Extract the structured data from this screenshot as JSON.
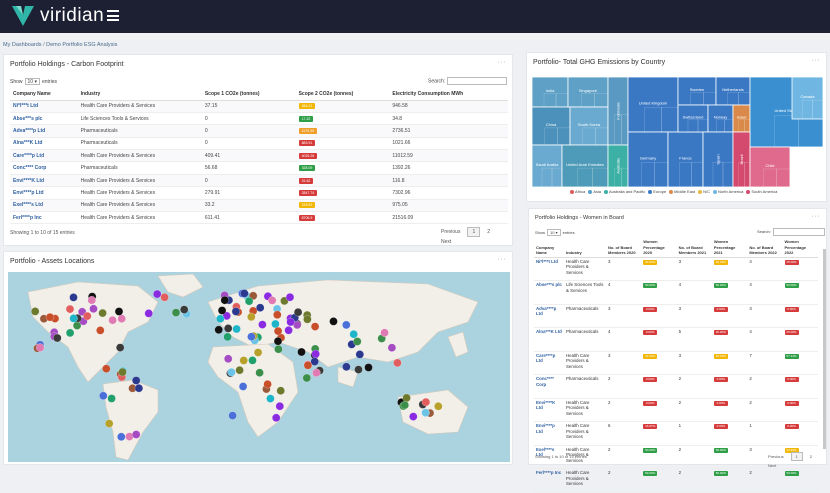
{
  "app": {
    "brand": "viridian"
  },
  "breadcrumb": {
    "root": "My Dashboards",
    "sep": "/",
    "current": "Demo Portfolio ESG Analysis"
  },
  "carbon": {
    "title": "Portfolio Holdings - Carbon Footprint",
    "show_label": "Show",
    "entries_value": "10",
    "entries_label": "entries",
    "search_label": "Search:",
    "columns": [
      "Company Name",
      "Industry",
      "Scope 1 CO2e (tonnes)",
      "Scope 2 CO2e (tonnes)",
      "Electricity Consumption MWh"
    ],
    "rows": [
      {
        "company": "Ni*l***t Ltd",
        "industry": "Health Care Providers & Services",
        "scope1": "37.15",
        "scope2": "264.21",
        "scope2_color": "#f2b705",
        "elec": "946.58"
      },
      {
        "company": "Abse***s plc",
        "industry": "Life Sciences Tools & Services",
        "scope1": "0",
        "scope2": "17.22",
        "scope2_color": "#2e9e47",
        "elec": "34.8"
      },
      {
        "company": "Adva****p Ltd",
        "industry": "Pharmaceuticals",
        "scope1": "0",
        "scope2": "1179.39",
        "scope2_color": "#f0a02a",
        "elec": "2736.51"
      },
      {
        "company": "Alna***K Ltd",
        "industry": "Pharmaceuticals",
        "scope1": "0",
        "scope2": "883.91",
        "scope2_color": "#d63b3b",
        "elec": "1021.66"
      },
      {
        "company": "Care****p Ltd",
        "industry": "Health Care Providers & Services",
        "scope1": "409.41",
        "scope2": "4025.25",
        "scope2_color": "#d63b3b",
        "elec": "11012.59"
      },
      {
        "company": "Conc**** Corp",
        "industry": "Pharmaceuticals",
        "scope1": "56.68",
        "scope2": "328.09",
        "scope2_color": "#2e9e47",
        "elec": "1392.26"
      },
      {
        "company": "Envi****K Ltd",
        "industry": "Health Care Providers & Services",
        "scope1": "0",
        "scope2": "31.62",
        "scope2_color": "#d63b3b",
        "elec": "116.8"
      },
      {
        "company": "Envi****p Ltd",
        "industry": "Health Care Providers & Services",
        "scope1": "279.91",
        "scope2": "2847.74",
        "scope2_color": "#d63b3b",
        "elec": "7302.96"
      },
      {
        "company": "Exel****s Ltd",
        "industry": "Health Care Providers & Services",
        "scope1": "33.2",
        "scope2": "378.62",
        "scope2_color": "#f2b705",
        "elec": "975.05"
      },
      {
        "company": "Ferl****p Inc",
        "industry": "Health Care Providers & Services",
        "scope1": "611.41",
        "scope2": "8706.9",
        "scope2_color": "#d63b3b",
        "elec": "21516.09"
      }
    ],
    "info": "Showing 1 to 10 of 15 entries",
    "pager": {
      "prev": "Previous",
      "p1": "1",
      "p2": "2",
      "next": "Next"
    }
  },
  "ghg": {
    "title": "Portfolio- Total GHG Emissions by Country",
    "cells": [
      {
        "label": "India",
        "color": "#5fa0c6"
      },
      {
        "label": "Singapore",
        "color": "#5fa0c6"
      },
      {
        "label": "China",
        "color": "#4c91bc"
      },
      {
        "label": "South Korea",
        "color": "#6aaad0"
      },
      {
        "label": "Indonesia",
        "color": "#5a9ac2"
      },
      {
        "label": "Saudi Arabia",
        "color": "#6aaad0"
      },
      {
        "label": "United Arab Emirates",
        "color": "#4d9bb8"
      },
      {
        "label": "Australia",
        "color": "#3db0a6"
      },
      {
        "label": "United Kingdom",
        "color": "#3a78c4"
      },
      {
        "label": "Germany",
        "color": "#3a78c4"
      },
      {
        "label": "France",
        "color": "#3a78c4"
      },
      {
        "label": "Sweden",
        "color": "#3a78c4"
      },
      {
        "label": "Netherlands",
        "color": "#3a78c4"
      },
      {
        "label": "Switzerland",
        "color": "#3a78c4"
      },
      {
        "label": "Norway",
        "color": "#3a78c4"
      },
      {
        "label": "Spain",
        "color": "#3a78c4"
      },
      {
        "label": "Israel",
        "color": "#d98a4a"
      },
      {
        "label": "United States",
        "color": "#3a8fd0"
      },
      {
        "label": "Canada",
        "color": "#6fb7e2"
      },
      {
        "label": "Brazil",
        "color": "#d44a6e"
      },
      {
        "label": "Chile",
        "color": "#e06a8e"
      }
    ],
    "legend": [
      {
        "label": "Africa",
        "color": "#e05a5a"
      },
      {
        "label": "Asia",
        "color": "#5aa0c6"
      },
      {
        "label": "Australia and Pacific",
        "color": "#3db0a6"
      },
      {
        "label": "Europe",
        "color": "#3a78c4"
      },
      {
        "label": "Middle East",
        "color": "#d98a4a"
      },
      {
        "label": "N/C",
        "color": "#e6b94a"
      },
      {
        "label": "North America",
        "color": "#6fb7e2"
      },
      {
        "label": "South America",
        "color": "#d44a6e"
      }
    ]
  },
  "women": {
    "title": "Portfolio Holdings - Women in Board",
    "show_label": "Show",
    "entries_value": "10",
    "entries_label": "entries",
    "search_label": "Search:",
    "columns": [
      "Company Name",
      "Industry",
      "No. of Board Members 2020",
      "Women Percentage 2020",
      "No. of Board Members 2021",
      "Women Percentage 2021",
      "No. of Board Members 2022",
      "Women Percentage 2022"
    ],
    "rows": [
      {
        "company": "Ni*l***t Ltd",
        "industry": "Health Care Providers & Services",
        "b20": "3",
        "w20": "33.33%",
        "c20": "#f2b705",
        "b21": "3",
        "w21": "33.33%",
        "c21": "#f2b705",
        "b22": "4",
        "w22": "25.00%",
        "c22": "#d63b3b"
      },
      {
        "company": "Abse***s plc",
        "industry": "Life Sciences Tools & Services",
        "b20": "4",
        "w20": "50.00%",
        "c20": "#2e9e47",
        "b21": "4",
        "w21": "50.00%",
        "c21": "#2e9e47",
        "b22": "4",
        "w22": "50.00%",
        "c22": "#2e9e47"
      },
      {
        "company": "Adva****p Ltd",
        "industry": "Pharmaceuticals",
        "b20": "3",
        "w20": "0.00%",
        "c20": "#d63b3b",
        "b21": "3",
        "w21": "0.00%",
        "c21": "#d63b3b",
        "b22": "3",
        "w22": "0.00%",
        "c22": "#d63b3b"
      },
      {
        "company": "Alna***K Ltd",
        "industry": "Pharmaceuticals",
        "b20": "4",
        "w20": "0.00%",
        "c20": "#d63b3b",
        "b21": "5",
        "w21": "20.00%",
        "c21": "#d63b3b",
        "b22": "4",
        "w22": "25.00%",
        "c22": "#d63b3b"
      },
      {
        "company": "Care****p Ltd",
        "industry": "Health Care Providers & Services",
        "b20": "3",
        "w20": "33.33%",
        "c20": "#f2b705",
        "b21": "3",
        "w21": "33.33%",
        "c21": "#f2b705",
        "b22": "7",
        "w22": "57.14%",
        "c22": "#2e9e47"
      },
      {
        "company": "Conc**** Corp",
        "industry": "Pharmaceuticals",
        "b20": "2",
        "w20": "0.00%",
        "c20": "#d63b3b",
        "b21": "2",
        "w21": "0.00%",
        "c21": "#d63b3b",
        "b22": "2",
        "w22": "0.00%",
        "c22": "#d63b3b"
      },
      {
        "company": "Envi****K Ltd",
        "industry": "Health Care Providers & Services",
        "b20": "2",
        "w20": "0.00%",
        "c20": "#d63b3b",
        "b21": "2",
        "w21": "0.00%",
        "c21": "#d63b3b",
        "b22": "2",
        "w22": "0.00%",
        "c22": "#d63b3b"
      },
      {
        "company": "Envi****p Ltd",
        "industry": "Health Care Providers & Services",
        "b20": "6",
        "w20": "16.67%",
        "c20": "#d63b3b",
        "b21": "1",
        "w21": "0.00%",
        "c21": "#d63b3b",
        "b22": "1",
        "w22": "0.00%",
        "c22": "#d63b3b"
      },
      {
        "company": "Exel****s Ltd",
        "industry": "Health Care Providers & Services",
        "b20": "2",
        "w20": "50.00%",
        "c20": "#2e9e47",
        "b21": "2",
        "w21": "50.00%",
        "c21": "#2e9e47",
        "b22": "3",
        "w22": "33.33%",
        "c22": "#f2b705"
      },
      {
        "company": "Ferl****p Inc",
        "industry": "Health Care Providers & Services",
        "b20": "2",
        "w20": "50.00%",
        "c20": "#2e9e47",
        "b21": "2",
        "w21": "50.00%",
        "c21": "#2e9e47",
        "b22": "2",
        "w22": "50.00%",
        "c22": "#2e9e47"
      }
    ],
    "info": "Showing 1 to 10 of 15 entries",
    "pager": {
      "prev": "Previous",
      "p1": "1",
      "p2": "2",
      "next": "Next"
    }
  },
  "assets": {
    "title": "Portfolio - Assets Locations"
  },
  "colors": {
    "topbar": "#1d1f33",
    "link": "#2d5fa0",
    "ocean": "#aad3df",
    "land": "#f2efe9"
  }
}
